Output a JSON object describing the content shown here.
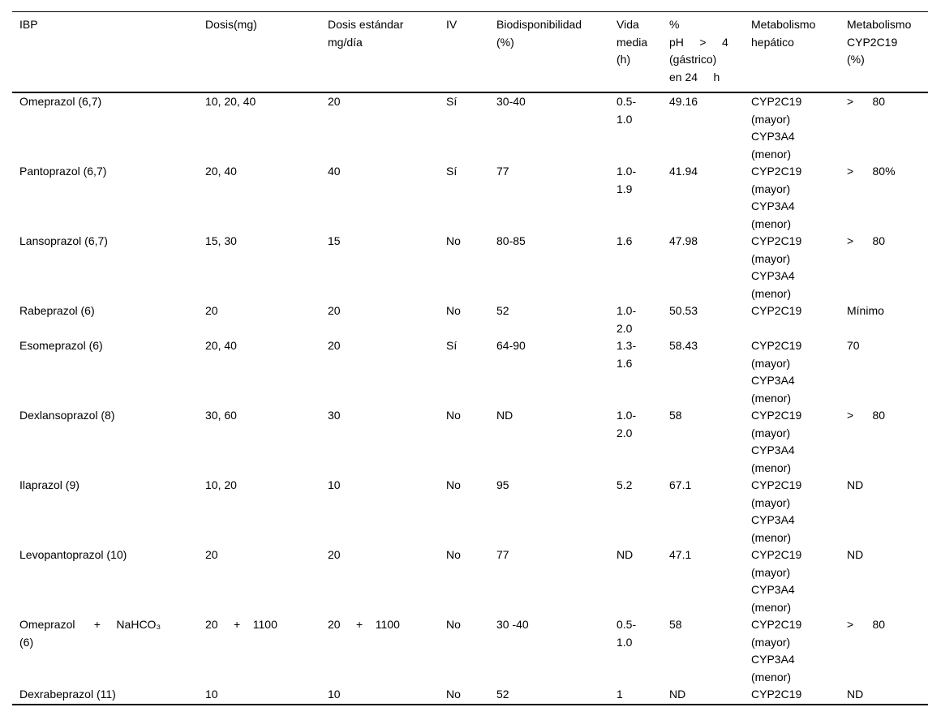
{
  "colors": {
    "text": "#000000",
    "border": "#000000",
    "background": "#ffffff"
  },
  "table": {
    "columns": [
      "IBP",
      "Dosis(mg)",
      "Dosis estándar\nmg/día",
      "IV",
      "Biodisponibilidad\n(%)",
      "Vida\nmedia\n(h)",
      "%\npH     >     4\n(gástrico)\nen 24     h",
      "Metabolismo\nhepático",
      "Metabolismo\nCYP2C19\n(%)"
    ],
    "rows": [
      [
        "Omeprazol (6,7)",
        "10, 20, 40",
        "20",
        "Sí",
        "30-40",
        "0.5-\n1.0",
        "49.16",
        "CYP2C19\n(mayor)\nCYP3A4\n(menor)",
        ">      80"
      ],
      [
        "Pantoprazol (6,7)",
        "20, 40",
        "40",
        "Sí",
        "77",
        "1.0-\n1.9",
        "41.94",
        "CYP2C19\n(mayor)\nCYP3A4\n(menor)",
        ">      80%"
      ],
      [
        "Lansoprazol (6,7)",
        "15, 30",
        "15",
        "No",
        "80-85",
        "1.6",
        "47.98",
        "CYP2C19\n(mayor)\nCYP3A4\n(menor)",
        ">      80"
      ],
      [
        "Rabeprazol (6)",
        "20",
        "20",
        "No",
        "52",
        "1.0-\n2.0",
        "50.53",
        "CYP2C19",
        "Mínimo"
      ],
      [
        "Esomeprazol (6)",
        "20, 40",
        "20",
        "Sí",
        "64-90",
        "1.3-\n1.6",
        "58.43",
        "CYP2C19\n(mayor)\nCYP3A4\n(menor)",
        "70"
      ],
      [
        "Dexlansoprazol (8)",
        "30, 60",
        "30",
        "No",
        "ND",
        "1.0-\n2.0",
        "58",
        "CYP2C19\n(mayor)\nCYP3A4\n(menor)",
        ">      80"
      ],
      [
        "Ilaprazol (9)",
        "10, 20",
        "10",
        "No",
        "95",
        "5.2",
        "67.1",
        "CYP2C19\n(mayor)\nCYP3A4\n(menor)",
        "ND"
      ],
      [
        "Levopantoprazol (10)",
        "20",
        "20",
        "No",
        "77",
        "ND",
        "47.1",
        "CYP2C19\n(mayor)\nCYP3A4\n(menor)",
        "ND"
      ],
      [
        "Omeprazol      +     NaHCO₃\n(6)",
        "20     +    1100",
        "20     +    1100",
        "No",
        "30 -40",
        "0.5-\n1.0",
        "58",
        "CYP2C19\n(mayor)\nCYP3A4\n(menor)",
        ">      80"
      ],
      [
        "Dexrabeprazol (11)",
        "10",
        "10",
        "No",
        "52",
        "1",
        "ND",
        "CYP2C19",
        "ND"
      ]
    ]
  }
}
